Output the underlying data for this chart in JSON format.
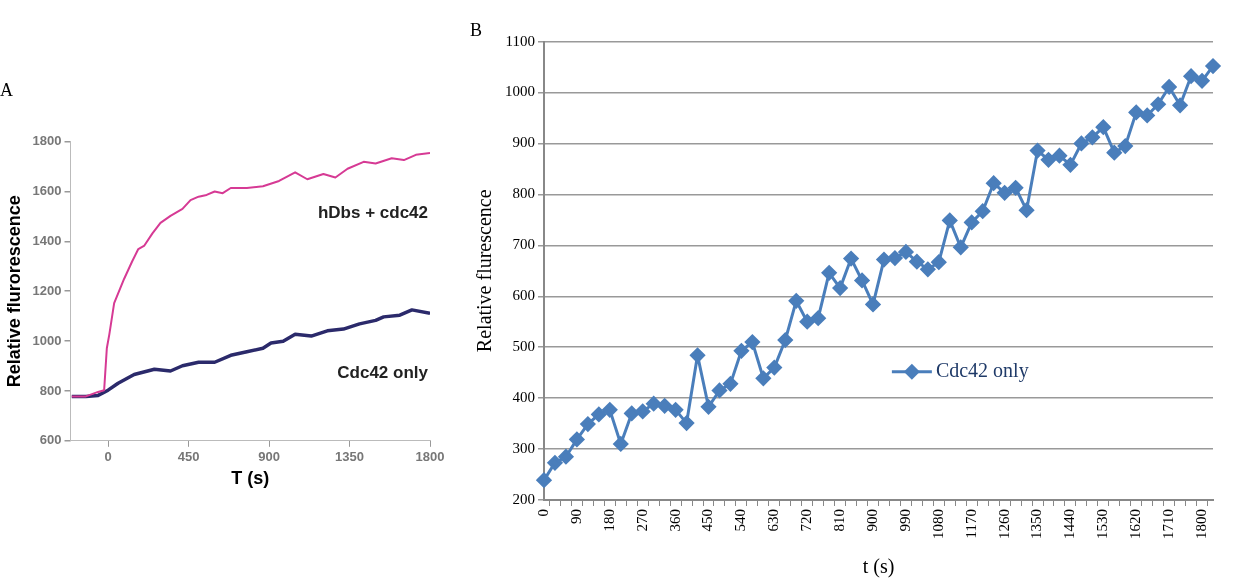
{
  "chart_data": [
    {
      "type": "line",
      "title": "A",
      "xlabel": "T (s)",
      "ylabel": "Relative flurorescence",
      "xlim": [
        -210,
        1800
      ],
      "xticks": [
        0,
        450,
        900,
        1350,
        1800
      ],
      "ylim": [
        600,
        1800
      ],
      "yticks": [
        600,
        800,
        1000,
        1200,
        1400,
        1600,
        1800
      ],
      "grid": false,
      "legend": false,
      "marker": "none",
      "line_style": "solid",
      "series": [
        {
          "name": "hDbs + cdc42",
          "color": "#d63a94",
          "x": [
            -203,
            -124,
            -56,
            -22,
            -7,
            7,
            34,
            90,
            135,
            169,
            203,
            248,
            293,
            349,
            416,
            461,
            506,
            551,
            596,
            641,
            686,
            776,
            866,
            956,
            1046,
            1114,
            1204,
            1271,
            1339,
            1429,
            1496,
            1586,
            1654,
            1721,
            1800
          ],
          "values": [
            778,
            778,
            796,
            803,
            971,
            1027,
            1152,
            1250,
            1320,
            1369,
            1383,
            1432,
            1474,
            1502,
            1530,
            1565,
            1579,
            1586,
            1600,
            1593,
            1614,
            1614,
            1621,
            1642,
            1677,
            1649,
            1670,
            1656,
            1691,
            1719,
            1712,
            1733,
            1726,
            1747,
            1754
          ]
        },
        {
          "name": "Cdc42 only",
          "color": "#2b2a6b",
          "x": [
            -203,
            -124,
            -56,
            0,
            56,
            146,
            259,
            349,
            416,
            506,
            596,
            686,
            776,
            866,
            911,
            979,
            1046,
            1136,
            1226,
            1316,
            1406,
            1496,
            1541,
            1631,
            1699,
            1800
          ],
          "values": [
            778,
            778,
            782,
            803,
            831,
            866,
            887,
            880,
            901,
            915,
            915,
            943,
            957,
            971,
            992,
            999,
            1027,
            1020,
            1041,
            1048,
            1069,
            1083,
            1097,
            1104,
            1125,
            1111
          ]
        }
      ]
    },
    {
      "type": "line",
      "title": "B",
      "xlabel": "t (s)",
      "ylabel": "Relative flurescence",
      "categories": [
        "0",
        null,
        null,
        "90",
        null,
        null,
        "180",
        null,
        null,
        "270",
        null,
        null,
        "360",
        null,
        null,
        "450",
        null,
        null,
        "540",
        null,
        null,
        "630",
        null,
        null,
        "720",
        null,
        null,
        "810",
        null,
        null,
        "900",
        null,
        null,
        "990",
        null,
        null,
        "1080",
        null,
        null,
        "1170",
        null,
        null,
        "1260",
        null,
        null,
        "1350",
        null,
        null,
        "1440",
        null,
        null,
        "1530",
        null,
        null,
        "1620",
        null,
        null,
        "1710",
        null,
        null,
        "1800",
        null
      ],
      "ylim": [
        200,
        1100
      ],
      "yticks": [
        200,
        300,
        400,
        500,
        600,
        700,
        800,
        900,
        1000,
        1100
      ],
      "grid": "y",
      "legend": "center",
      "marker": "diamond",
      "line_style": "solid",
      "series": [
        {
          "name": "Cdc42 only",
          "color": "#4a7ebb",
          "values": [
            239,
            273,
            285,
            319,
            349,
            368,
            377,
            310,
            370,
            374,
            389,
            385,
            377,
            351,
            484,
            383,
            415,
            428,
            493,
            510,
            439,
            460,
            514,
            591,
            550,
            557,
            646,
            616,
            674,
            631,
            584,
            672,
            675,
            687,
            668,
            653,
            667,
            749,
            696,
            745,
            767,
            822,
            803,
            813,
            769,
            886,
            868,
            876,
            858,
            900,
            912,
            932,
            882,
            895,
            961,
            955,
            977,
            1011,
            975,
            1032,
            1023,
            1052
          ]
        }
      ]
    }
  ]
}
